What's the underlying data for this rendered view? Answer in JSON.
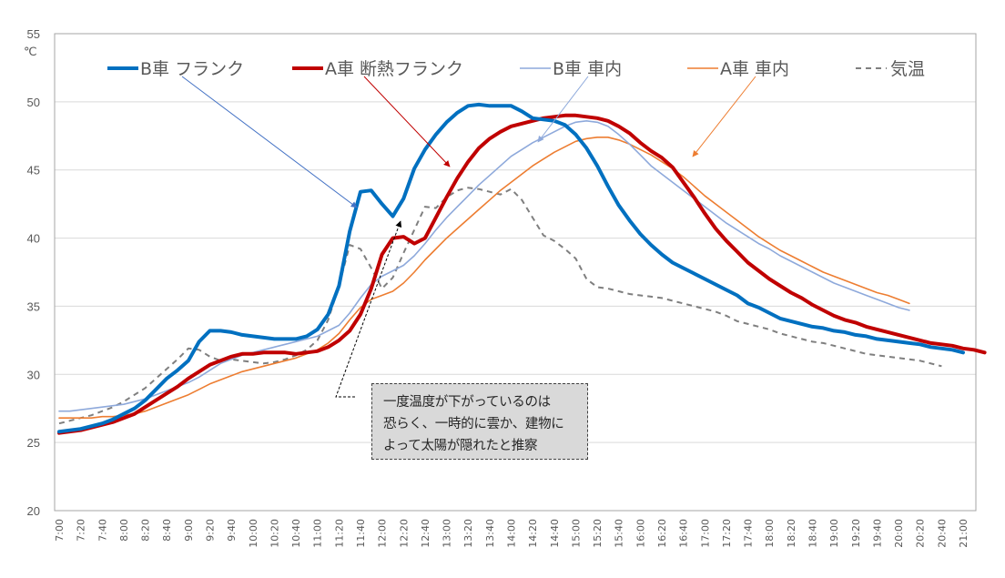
{
  "chart_data": {
    "type": "line",
    "title": "",
    "xlabel": "",
    "ylabel": "℃",
    "ylim": [
      20,
      55
    ],
    "yticks": [
      "20",
      "25",
      "30",
      "35",
      "40",
      "45",
      "50",
      "55"
    ],
    "grid": true,
    "legend_position": "top",
    "x_tick_labels": [
      "7:00",
      "7:20",
      "7:40",
      "8:00",
      "8:20",
      "8:40",
      "9:00",
      "9:20",
      "9:40",
      "10:00",
      "10:20",
      "10:40",
      "11:00",
      "11:20",
      "11:40",
      "12:00",
      "12:20",
      "12:40",
      "13:00",
      "13:20",
      "13:40",
      "14:00",
      "14:20",
      "14:40",
      "15:00",
      "15:20",
      "15:40",
      "16:00",
      "16:20",
      "16:40",
      "17:00",
      "17:20",
      "17:40",
      "18:00",
      "18:20",
      "18:40",
      "19:00",
      "19:20",
      "19:40",
      "20:00",
      "20:20",
      "20:40",
      "21:00"
    ],
    "x_interval_minutes": 10,
    "series": [
      {
        "name": "B車 フランク",
        "color": "#0070C0",
        "style": "solid-thick",
        "values": [
          25.8,
          25.9,
          26.0,
          26.2,
          26.4,
          26.7,
          27.1,
          27.5,
          28.1,
          28.9,
          29.7,
          30.3,
          31.0,
          32.4,
          33.2,
          33.2,
          33.1,
          32.9,
          32.8,
          32.7,
          32.6,
          32.6,
          32.6,
          32.8,
          33.3,
          34.4,
          36.5,
          40.5,
          43.4,
          43.5,
          42.5,
          41.6,
          42.9,
          45.1,
          46.5,
          47.6,
          48.5,
          49.2,
          49.7,
          49.8,
          49.7,
          49.7,
          49.7,
          49.3,
          48.8,
          48.7,
          48.6,
          48.3,
          47.6,
          46.6,
          45.3,
          43.8,
          42.4,
          41.3,
          40.3,
          39.5,
          38.8,
          38.2,
          37.8,
          37.4,
          37.0,
          36.6,
          36.2,
          35.8,
          35.2,
          34.9,
          34.5,
          34.1,
          33.9,
          33.7,
          33.5,
          33.4,
          33.2,
          33.1,
          32.9,
          32.8,
          32.6,
          32.5,
          32.4,
          32.3,
          32.2,
          32.0,
          31.9,
          31.8,
          31.6
        ]
      },
      {
        "name": "A車 断熱フランク",
        "color": "#C00000",
        "style": "solid-thick",
        "values": [
          25.7,
          25.8,
          25.9,
          26.1,
          26.3,
          26.5,
          26.8,
          27.1,
          27.6,
          28.1,
          28.6,
          29.1,
          29.7,
          30.2,
          30.7,
          31.0,
          31.3,
          31.5,
          31.5,
          31.6,
          31.6,
          31.6,
          31.5,
          31.6,
          31.7,
          32.0,
          32.5,
          33.2,
          34.4,
          36.3,
          38.8,
          40.0,
          40.1,
          39.6,
          40.0,
          41.5,
          43.0,
          44.4,
          45.6,
          46.6,
          47.3,
          47.8,
          48.2,
          48.4,
          48.6,
          48.8,
          48.9,
          49.0,
          49.0,
          48.9,
          48.8,
          48.6,
          48.2,
          47.7,
          47.0,
          46.4,
          45.9,
          45.2,
          44.1,
          43.0,
          41.8,
          40.7,
          39.8,
          39.0,
          38.2,
          37.6,
          37.0,
          36.5,
          36.0,
          35.6,
          35.1,
          34.7,
          34.3,
          34.0,
          33.8,
          33.5,
          33.3,
          33.1,
          32.9,
          32.7,
          32.5,
          32.3,
          32.2,
          32.1,
          31.9,
          31.8,
          31.6
        ]
      },
      {
        "name": "B車 車内",
        "color": "#8EA9DB",
        "style": "solid-thin",
        "values": [
          27.3,
          27.3,
          27.4,
          27.5,
          27.6,
          27.7,
          27.8,
          28.0,
          28.2,
          28.5,
          28.8,
          29.1,
          29.4,
          29.8,
          30.3,
          30.8,
          31.1,
          31.4,
          31.6,
          31.8,
          32.0,
          32.2,
          32.4,
          32.6,
          32.8,
          33.2,
          33.6,
          34.5,
          35.6,
          36.6,
          37.2,
          37.6,
          38.0,
          38.7,
          39.6,
          40.6,
          41.5,
          42.3,
          43.1,
          43.9,
          44.6,
          45.3,
          46.0,
          46.5,
          47.0,
          47.4,
          47.8,
          48.2,
          48.5,
          48.6,
          48.5,
          48.2,
          47.6,
          46.9,
          46.1,
          45.3,
          44.7,
          44.1,
          43.5,
          42.9,
          42.3,
          41.7,
          41.1,
          40.6,
          40.1,
          39.6,
          39.2,
          38.7,
          38.3,
          37.9,
          37.5,
          37.1,
          36.7,
          36.4,
          36.1,
          35.8,
          35.5,
          35.2,
          34.9,
          34.7
        ],
        "note": "values shown at 10-min intervals from 7:00 until series end"
      },
      {
        "name": "A車 車内",
        "color": "#ED7D31",
        "style": "solid-thin",
        "values": [
          26.8,
          26.8,
          26.8,
          26.8,
          26.9,
          26.9,
          27.0,
          27.1,
          27.3,
          27.6,
          27.9,
          28.2,
          28.5,
          28.9,
          29.3,
          29.6,
          29.9,
          30.2,
          30.4,
          30.6,
          30.8,
          31.0,
          31.2,
          31.5,
          31.8,
          32.3,
          33.0,
          34.0,
          34.9,
          35.5,
          35.8,
          36.1,
          36.7,
          37.5,
          38.4,
          39.2,
          40.0,
          40.7,
          41.4,
          42.1,
          42.8,
          43.5,
          44.1,
          44.7,
          45.3,
          45.8,
          46.3,
          46.7,
          47.1,
          47.3,
          47.4,
          47.4,
          47.2,
          46.9,
          46.5,
          46.1,
          45.6,
          45.1,
          44.5,
          43.8,
          43.1,
          42.5,
          41.9,
          41.3,
          40.7,
          40.1,
          39.6,
          39.1,
          38.7,
          38.3,
          37.9,
          37.5,
          37.2,
          36.9,
          36.6,
          36.3,
          36.0,
          35.8,
          35.5,
          35.2
        ]
      },
      {
        "name": "気温",
        "color": "#7F7F7F",
        "style": "dashed",
        "values": [
          26.4,
          26.6,
          26.8,
          27.0,
          27.3,
          27.6,
          28.0,
          28.5,
          29.0,
          29.7,
          30.4,
          31.1,
          31.9,
          31.8,
          31.3,
          31.0,
          31.1,
          31.0,
          30.9,
          30.8,
          30.9,
          31.1,
          31.4,
          31.8,
          32.5,
          34.0,
          36.5,
          39.5,
          39.2,
          37.8,
          36.3,
          37.1,
          38.9,
          40.6,
          42.3,
          42.2,
          43.0,
          43.5,
          43.7,
          43.6,
          43.4,
          43.2,
          43.6,
          42.8,
          41.5,
          40.2,
          39.8,
          39.2,
          38.5,
          37.0,
          36.4,
          36.3,
          36.1,
          35.9,
          35.8,
          35.7,
          35.6,
          35.4,
          35.2,
          35.0,
          34.8,
          34.6,
          34.3,
          33.9,
          33.7,
          33.5,
          33.3,
          33.0,
          32.8,
          32.6,
          32.4,
          32.3,
          32.1,
          31.9,
          31.7,
          31.5,
          31.4,
          31.3,
          31.2,
          31.1,
          31.0,
          30.8,
          30.6
        ]
      }
    ]
  },
  "annotation": {
    "lines": [
      "一度温度が下がっているのは",
      "恐らく、一時的に雲か、建物に",
      "よって太陽が隠れたと推察"
    ]
  }
}
